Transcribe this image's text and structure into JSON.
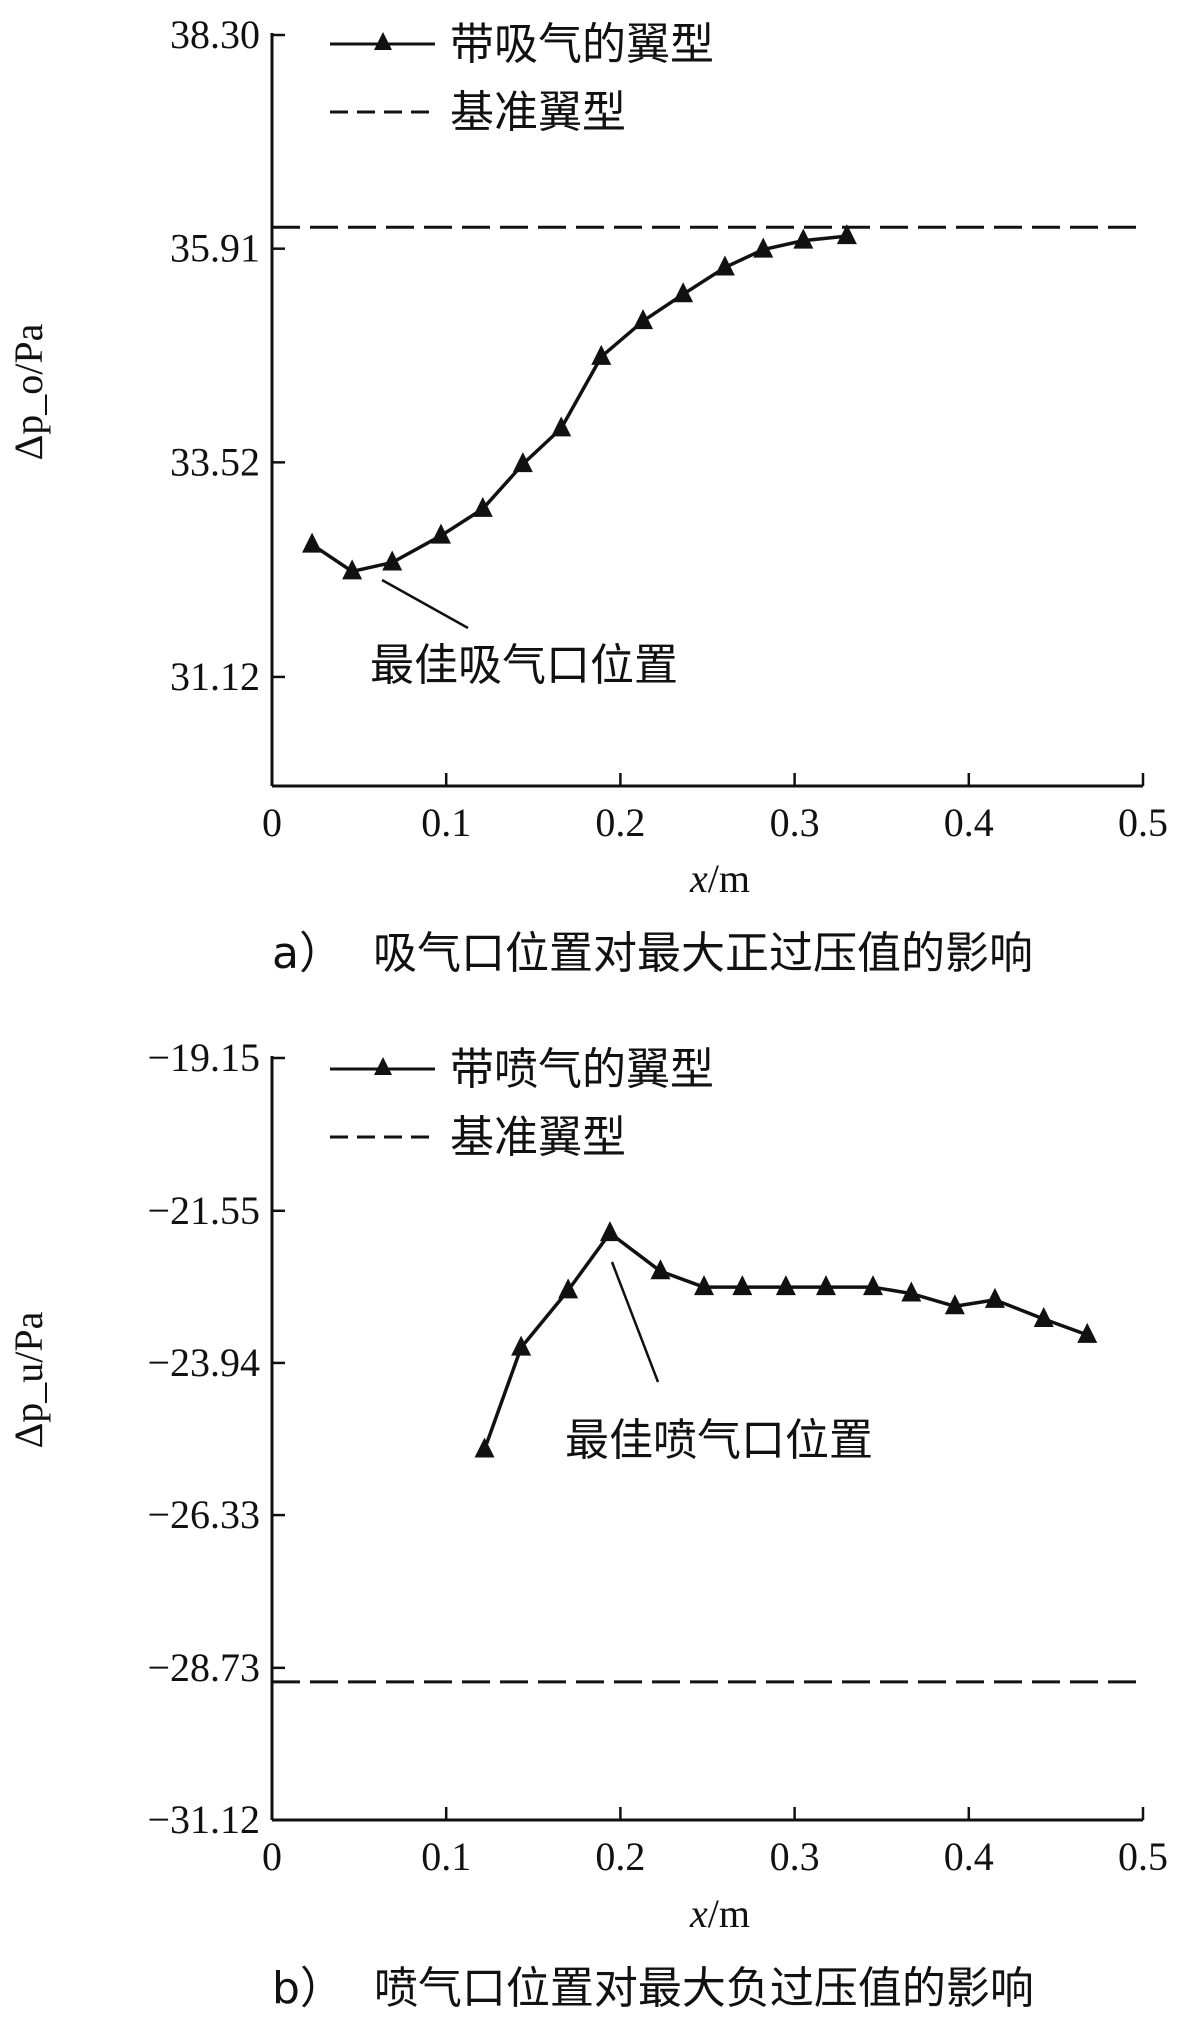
{
  "chart_data": [
    {
      "type": "line",
      "panel": "a",
      "caption_letter": "a）",
      "caption_text": "吸气口位置对最大正过压值的影响",
      "xlabel_var": "x",
      "xlabel_unit": "/m",
      "ylabel": "Δp_o/Pa",
      "xlim": [
        0,
        0.5
      ],
      "ylim": [
        29.9,
        38.3
      ],
      "x_ticks": [
        0,
        0.1,
        0.2,
        0.3,
        0.4,
        0.5
      ],
      "x_tick_labels": [
        "0",
        "0.1",
        "0.2",
        "0.3",
        "0.4",
        "0.5"
      ],
      "y_ticks": [
        31.12,
        33.52,
        35.91,
        38.3
      ],
      "y_tick_labels": [
        "31.12",
        "33.52",
        "35.91",
        "38.30"
      ],
      "grid": false,
      "legend_position": "top-left",
      "series": [
        {
          "name": "带吸气的翼型",
          "style": "solid-triangle",
          "color": "#111111",
          "x": [
            0.023,
            0.046,
            0.069,
            0.097,
            0.121,
            0.144,
            0.166,
            0.189,
            0.213,
            0.236,
            0.26,
            0.282,
            0.305,
            0.33
          ],
          "y": [
            32.6,
            32.3,
            32.4,
            32.7,
            33.0,
            33.5,
            33.9,
            34.7,
            35.1,
            35.4,
            35.7,
            35.9,
            36.0,
            36.05
          ]
        },
        {
          "name": "基准翼型",
          "style": "dashed",
          "color": "#111111",
          "x": [
            0,
            0.5
          ],
          "y": [
            36.15,
            36.15
          ]
        }
      ],
      "annotation": {
        "text": "最佳吸气口位置",
        "target_x": 0.046,
        "target_y": 32.3
      }
    },
    {
      "type": "line",
      "panel": "b",
      "caption_letter": "b）",
      "caption_text": "喷气口位置对最大负过压值的影响",
      "xlabel_var": "x",
      "xlabel_unit": "/m",
      "ylabel": "Δp_u/Pa",
      "xlim": [
        0,
        0.5
      ],
      "ylim": [
        -31.12,
        -19.15
      ],
      "x_ticks": [
        0,
        0.1,
        0.2,
        0.3,
        0.4,
        0.5
      ],
      "x_tick_labels": [
        "0",
        "0.1",
        "0.2",
        "0.3",
        "0.4",
        "0.5"
      ],
      "y_ticks": [
        -19.15,
        -21.55,
        -23.94,
        -26.33,
        -28.73,
        -31.12
      ],
      "y_tick_labels": [
        "−19.15",
        "−21.55",
        "−23.94",
        "−26.33",
        "−28.73",
        "−31.12"
      ],
      "grid": false,
      "legend_position": "top-left",
      "series": [
        {
          "name": "带喷气的翼型",
          "style": "solid-triangle",
          "color": "#111111",
          "x": [
            0.122,
            0.143,
            0.17,
            0.194,
            0.223,
            0.248,
            0.27,
            0.295,
            0.318,
            0.345,
            0.367,
            0.392,
            0.415,
            0.443,
            0.468
          ],
          "y": [
            -25.3,
            -23.7,
            -22.8,
            -21.9,
            -22.5,
            -22.75,
            -22.75,
            -22.75,
            -22.75,
            -22.75,
            -22.85,
            -23.05,
            -22.95,
            -23.25,
            -23.5
          ]
        },
        {
          "name": "基准翼型",
          "style": "dashed",
          "color": "#111111",
          "x": [
            0,
            0.5
          ],
          "y": [
            -28.95,
            -28.95
          ]
        }
      ],
      "annotation": {
        "text": "最佳喷气口位置",
        "target_x": 0.194,
        "target_y": -21.9
      }
    }
  ]
}
